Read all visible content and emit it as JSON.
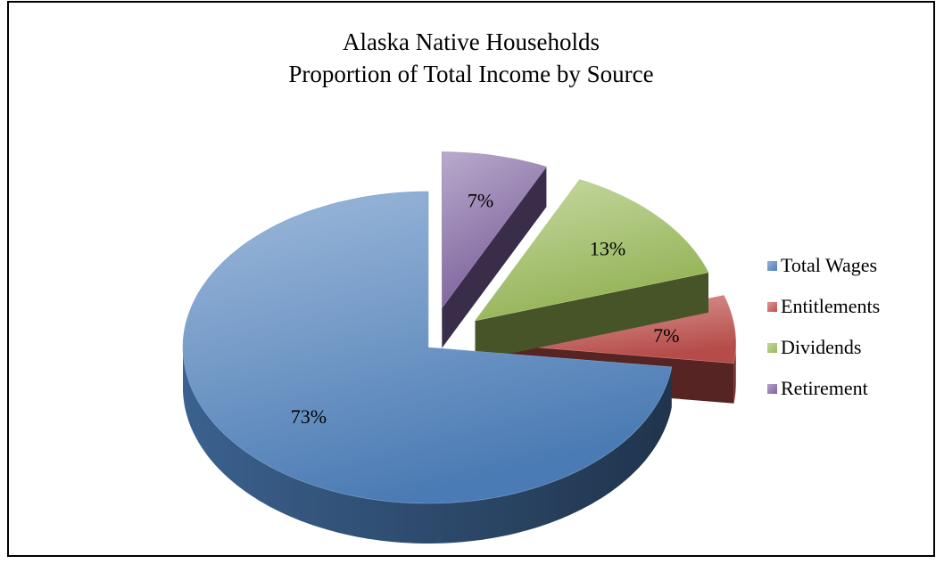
{
  "title": {
    "line1": "Alaska Native Households",
    "line2": "Proportion of Total Income by Source"
  },
  "chart_data": {
    "type": "pie",
    "style": "3d-exploded",
    "title": "Alaska Native Households Proportion of Total Income by Source",
    "categories": [
      "Total Wages",
      "Entitlements",
      "Dividends",
      "Retirement"
    ],
    "values": [
      73,
      7,
      13,
      7
    ],
    "labels": [
      "73%",
      "7%",
      "13%",
      "7%"
    ],
    "unit": "%",
    "legend_position": "right",
    "colors": {
      "Total Wages": "#4f81bd",
      "Entitlements": "#c0504d",
      "Dividends": "#9bbb59",
      "Retirement": "#8064a2"
    }
  }
}
